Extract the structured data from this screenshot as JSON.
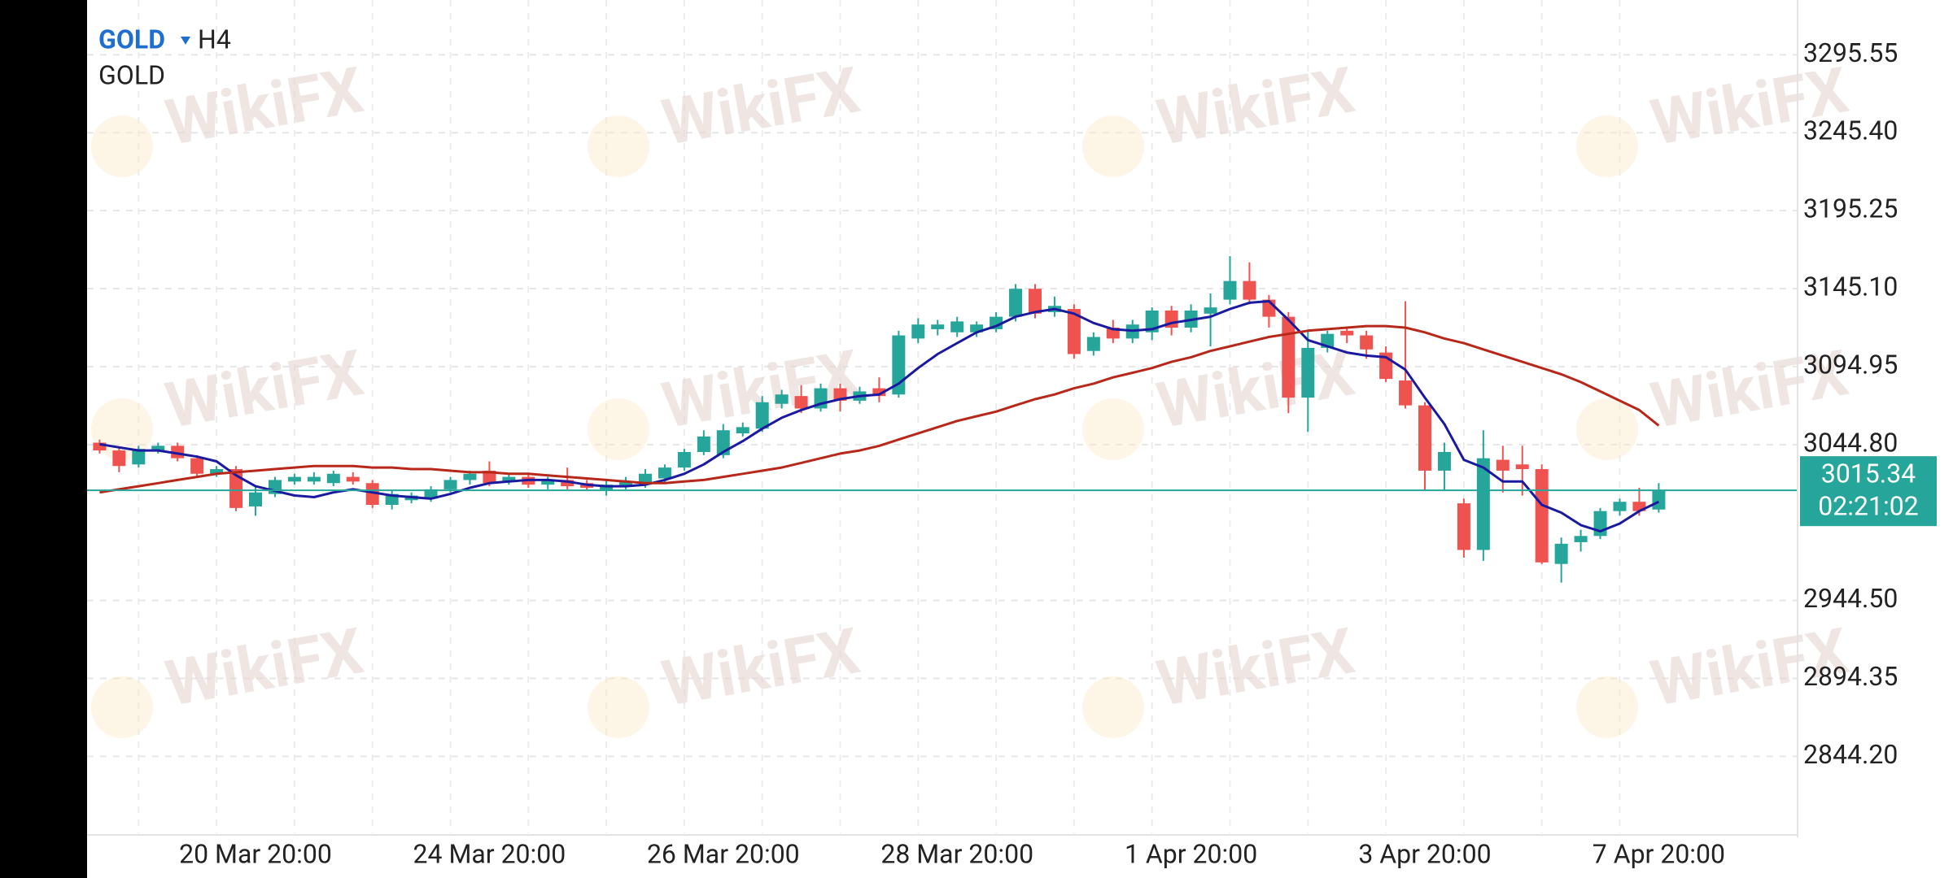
{
  "chart_data": {
    "type": "candlestick",
    "symbol": "GOLD",
    "timeframe": "H4",
    "subtitle": "GOLD",
    "watermark": "WikiFX",
    "categories": [
      null,
      null,
      null,
      null,
      null,
      null,
      null,
      null,
      "20 Mar 20:00",
      null,
      null,
      null,
      null,
      null,
      null,
      null,
      null,
      null,
      null,
      null,
      "24 Mar 20:00",
      null,
      null,
      null,
      null,
      null,
      null,
      null,
      null,
      null,
      null,
      null,
      "26 Mar 20:00",
      null,
      null,
      null,
      null,
      null,
      null,
      null,
      null,
      null,
      null,
      null,
      "28 Mar 20:00",
      null,
      null,
      null,
      null,
      null,
      null,
      null,
      null,
      null,
      null,
      null,
      "1 Apr 20:00",
      null,
      null,
      null,
      null,
      null,
      null,
      null,
      null,
      null,
      null,
      null,
      "3 Apr 20:00",
      null,
      null,
      null,
      null,
      null,
      null,
      null,
      null,
      null,
      null,
      null,
      "7 Apr 20:00"
    ],
    "open": [
      3046,
      3041,
      3032,
      3041,
      3044,
      3036,
      3026,
      3029,
      3005,
      3013,
      3021,
      3021,
      3020,
      3024,
      3020,
      3006,
      3009,
      3010,
      3016,
      3022,
      3028,
      3021,
      3024,
      3019,
      3022,
      3020,
      3015,
      3018,
      3019,
      3023,
      3030,
      3040,
      3038,
      3052,
      3055,
      3071,
      3076,
      3068,
      3081,
      3073,
      3081,
      3077,
      3113,
      3119,
      3117,
      3117,
      3119,
      3127,
      3145,
      3130,
      3132,
      3105,
      3120,
      3113,
      3117,
      3131,
      3120,
      3129,
      3138,
      3150,
      3138,
      3127,
      3075,
      3107,
      3118,
      3115,
      3104,
      3086,
      3070,
      3028,
      3007,
      2977,
      3035,
      3032,
      3029,
      2968,
      2982,
      2986,
      3002,
      3008,
      3003
    ],
    "high": [
      3048,
      3043,
      3044,
      3046,
      3046,
      3038,
      3031,
      3031,
      3018,
      3024,
      3026,
      3027,
      3028,
      3027,
      3022,
      3015,
      3014,
      3018,
      3024,
      3028,
      3034,
      3026,
      3026,
      3024,
      3030,
      3022,
      3022,
      3024,
      3029,
      3032,
      3042,
      3054,
      3058,
      3059,
      3076,
      3080,
      3083,
      3084,
      3084,
      3082,
      3088,
      3118,
      3126,
      3125,
      3127,
      3124,
      3130,
      3148,
      3148,
      3140,
      3135,
      3117,
      3125,
      3125,
      3133,
      3134,
      3135,
      3142,
      3166,
      3162,
      3141,
      3130,
      3118,
      3118,
      3120,
      3118,
      3108,
      3137,
      3072,
      3046,
      3010,
      3054,
      3044,
      3044,
      3032,
      2985,
      2990,
      3004,
      3010,
      3017,
      3020
    ],
    "low": [
      3039,
      3027,
      3030,
      3039,
      3034,
      3024,
      3024,
      3002,
      2999,
      3011,
      3019,
      3019,
      3018,
      3019,
      3004,
      3003,
      3007,
      3008,
      3014,
      3019,
      3018,
      3019,
      3017,
      3016,
      3016,
      3015,
      3012,
      3016,
      3017,
      3020,
      3028,
      3038,
      3036,
      3050,
      3053,
      3068,
      3065,
      3066,
      3066,
      3071,
      3072,
      3075,
      3110,
      3115,
      3114,
      3114,
      3117,
      3124,
      3126,
      3127,
      3100,
      3102,
      3110,
      3110,
      3112,
      3115,
      3117,
      3108,
      3135,
      3135,
      3120,
      3065,
      3053,
      3104,
      3110,
      3100,
      3085,
      3068,
      3015,
      3015,
      2972,
      2970,
      3014,
      3012,
      2968,
      2956,
      2976,
      2984,
      2999,
      2999,
      3001
    ],
    "close": [
      3041,
      3031,
      3042,
      3044,
      3036,
      3026,
      3029,
      3004,
      3014,
      3022,
      3024,
      3024,
      3026,
      3021,
      3006,
      3013,
      3012,
      3016,
      3022,
      3026,
      3020,
      3024,
      3019,
      3022,
      3018,
      3017,
      3019,
      3021,
      3026,
      3030,
      3040,
      3050,
      3054,
      3056,
      3072,
      3077,
      3068,
      3081,
      3073,
      3079,
      3076,
      3115,
      3122,
      3122,
      3124,
      3122,
      3127,
      3145,
      3129,
      3134,
      3103,
      3114,
      3113,
      3122,
      3131,
      3120,
      3131,
      3133,
      3150,
      3138,
      3127,
      3075,
      3107,
      3116,
      3115,
      3106,
      3087,
      3070,
      3028,
      3040,
      2977,
      3036,
      3028,
      3029,
      2969,
      2981,
      2986,
      3002,
      3008,
      3002,
      3015.34
    ],
    "up_color": "#26a69a",
    "down_color": "#ef5350",
    "series": [
      {
        "color": "#1a1aa0",
        "values": [
          3045,
          3043,
          3041,
          3041,
          3039,
          3037,
          3034,
          3025,
          3018,
          3015,
          3012,
          3011,
          3014,
          3016,
          3014,
          3012,
          3011,
          3010,
          3013,
          3017,
          3020,
          3021,
          3022,
          3022,
          3021,
          3019,
          3018,
          3018,
          3019,
          3022,
          3026,
          3032,
          3040,
          3047,
          3055,
          3062,
          3067,
          3071,
          3074,
          3076,
          3077,
          3084,
          3094,
          3103,
          3110,
          3117,
          3121,
          3127,
          3130,
          3132,
          3129,
          3123,
          3119,
          3118,
          3119,
          3123,
          3125,
          3127,
          3132,
          3136,
          3137,
          3125,
          3112,
          3108,
          3104,
          3102,
          3101,
          3093,
          3075,
          3058,
          3035,
          3030,
          3021,
          3021,
          3006,
          3001,
          2993,
          2989,
          2994,
          3002,
          3008
        ]
      },
      {
        "color": "#b8281a",
        "values": [
          3014,
          3016,
          3018,
          3020,
          3022,
          3024,
          3026,
          3027,
          3028,
          3029,
          3030,
          3031,
          3031,
          3031,
          3030,
          3030,
          3029,
          3029,
          3028,
          3027,
          3027,
          3026,
          3026,
          3025,
          3024,
          3023,
          3022,
          3021,
          3020,
          3020,
          3021,
          3022,
          3024,
          3026,
          3028,
          3030,
          3033,
          3036,
          3039,
          3041,
          3044,
          3048,
          3052,
          3056,
          3060,
          3063,
          3066,
          3070,
          3074,
          3077,
          3081,
          3084,
          3088,
          3091,
          3094,
          3098,
          3101,
          3105,
          3108,
          3111,
          3114,
          3116,
          3118,
          3119,
          3120,
          3121,
          3121,
          3120,
          3117,
          3113,
          3110,
          3106,
          3102,
          3098,
          3094,
          3090,
          3085,
          3079,
          3073,
          3067,
          3057
        ]
      }
    ],
    "ylim": [
      2794.75,
      3330.75
    ],
    "yticks": [
      {
        "value": 2844.2,
        "label": "2844.20"
      },
      2894.35,
      {
        "value": 2944.5,
        "label": "2944.50"
      },
      {
        "value": 3044.8,
        "label": "3044.80"
      },
      3094.95,
      {
        "value": 3145.1,
        "label": "3145.10"
      },
      3195.25,
      {
        "value": 3245.4,
        "label": "3245.40"
      },
      3295.55
    ],
    "grid": true,
    "last_price": 3015.34,
    "last_price_color": "#26a69a",
    "countdown": "02:21:02"
  }
}
